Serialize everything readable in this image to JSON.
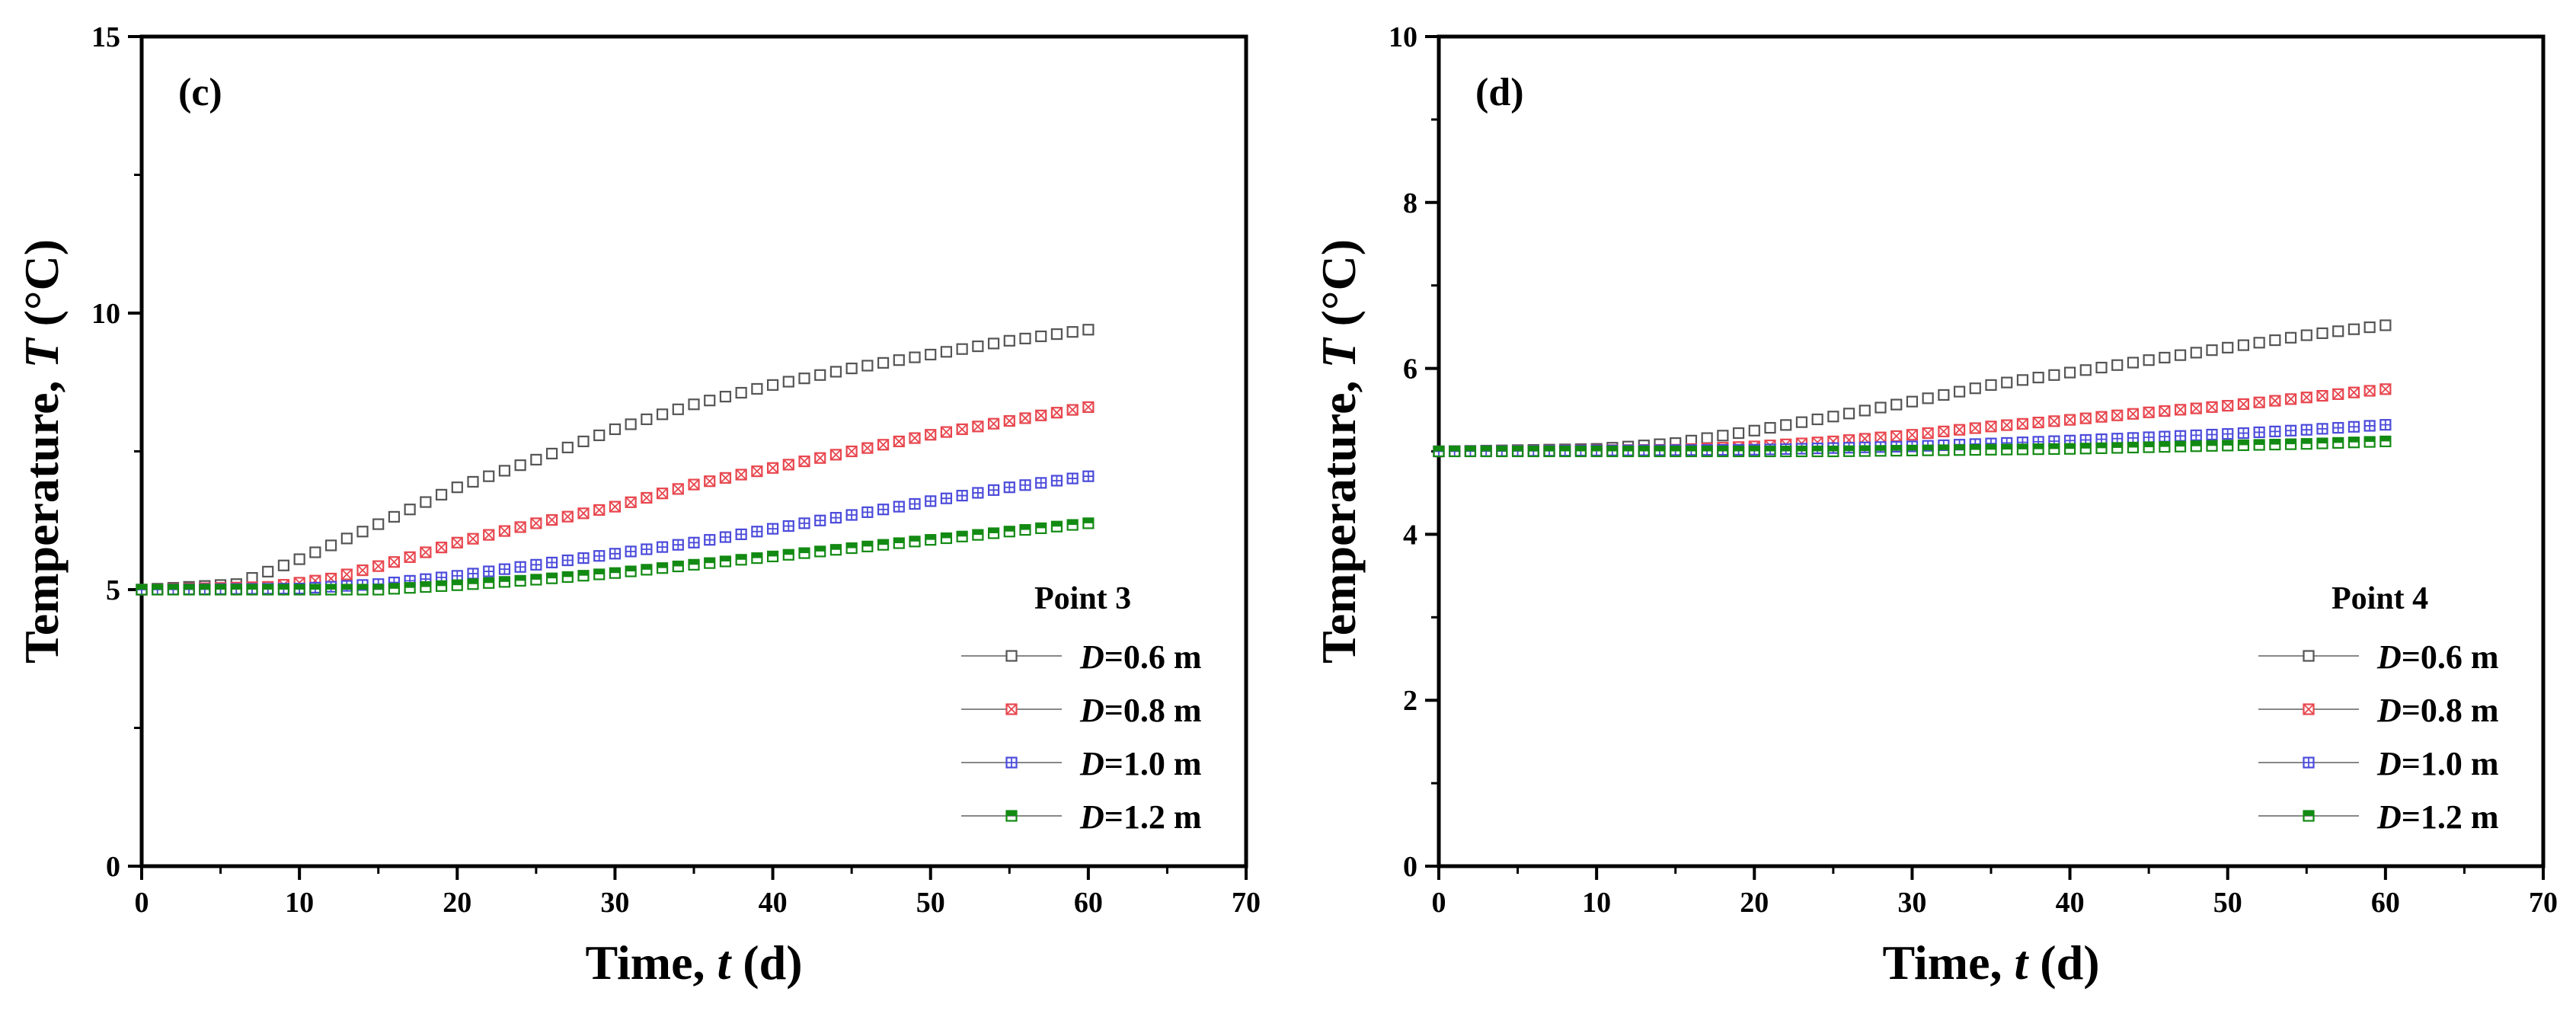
{
  "chart_data": [
    {
      "type": "scatter",
      "panel_label": "(c)",
      "xlabel": "Time, ",
      "xlabel_var": "t",
      "xlabel_unit": " (d)",
      "ylabel": "Temperature, ",
      "ylabel_var": "T",
      "ylabel_unit": " (°C)",
      "xlim": [
        0,
        70
      ],
      "ylim": [
        0,
        15
      ],
      "xticks": [
        0,
        10,
        20,
        30,
        40,
        50,
        60,
        70
      ],
      "yticks": [
        0,
        5,
        10,
        15
      ],
      "legend_title": "Point 3",
      "legend_position": "bottom-right",
      "series": [
        {
          "name": "D=0.6 m",
          "var": "D",
          "suffix": "=0.6 m",
          "color": "#555555",
          "marker": "open-square",
          "points": [
            [
              0,
              5.0
            ],
            [
              6,
              5.1
            ],
            [
              10,
              5.55
            ],
            [
              14,
              6.05
            ],
            [
              20,
              6.85
            ],
            [
              25,
              7.35
            ],
            [
              30,
              7.9
            ],
            [
              35,
              8.35
            ],
            [
              40,
              8.7
            ],
            [
              45,
              9.0
            ],
            [
              50,
              9.25
            ],
            [
              55,
              9.5
            ],
            [
              60,
              9.7
            ]
          ]
        },
        {
          "name": "D=0.8 m",
          "var": "D",
          "suffix": "=0.8 m",
          "color": "#e8474f",
          "marker": "crossed-square",
          "points": [
            [
              0,
              5.0
            ],
            [
              8,
              5.05
            ],
            [
              12,
              5.2
            ],
            [
              16,
              5.5
            ],
            [
              20,
              5.85
            ],
            [
              25,
              6.2
            ],
            [
              30,
              6.5
            ],
            [
              35,
              6.9
            ],
            [
              40,
              7.2
            ],
            [
              45,
              7.5
            ],
            [
              50,
              7.8
            ],
            [
              55,
              8.05
            ],
            [
              60,
              8.3
            ]
          ]
        },
        {
          "name": "D=1.0 m",
          "var": "D",
          "suffix": "=1.0 m",
          "color": "#4b4bdb",
          "marker": "plus-square",
          "points": [
            [
              0,
              5.0
            ],
            [
              10,
              5.02
            ],
            [
              15,
              5.1
            ],
            [
              20,
              5.25
            ],
            [
              25,
              5.45
            ],
            [
              30,
              5.65
            ],
            [
              35,
              5.85
            ],
            [
              40,
              6.1
            ],
            [
              45,
              6.35
            ],
            [
              50,
              6.6
            ],
            [
              55,
              6.85
            ],
            [
              60,
              7.05
            ]
          ]
        },
        {
          "name": "D=1.2 m",
          "var": "D",
          "suffix": "=1.2 m",
          "color": "#138a13",
          "marker": "half-square",
          "points": [
            [
              0,
              5.0
            ],
            [
              15,
              5.0
            ],
            [
              20,
              5.08
            ],
            [
              25,
              5.18
            ],
            [
              30,
              5.3
            ],
            [
              35,
              5.45
            ],
            [
              40,
              5.6
            ],
            [
              45,
              5.75
            ],
            [
              50,
              5.9
            ],
            [
              55,
              6.05
            ],
            [
              60,
              6.2
            ]
          ]
        }
      ]
    },
    {
      "type": "scatter",
      "panel_label": "(d)",
      "xlabel": "Time, ",
      "xlabel_var": "t",
      "xlabel_unit": " (d)",
      "ylabel": "Temperature, ",
      "ylabel_var": "T",
      "ylabel_unit": " (°C)",
      "xlim": [
        0,
        70
      ],
      "ylim": [
        0,
        10
      ],
      "xticks": [
        0,
        10,
        20,
        30,
        40,
        50,
        60,
        70
      ],
      "yticks": [
        0,
        2,
        4,
        6,
        8,
        10
      ],
      "legend_title": "Point 4",
      "legend_position": "bottom-right",
      "series": [
        {
          "name": "D=0.6 m",
          "var": "D",
          "suffix": "=0.6 m",
          "color": "#555555",
          "marker": "open-square",
          "points": [
            [
              0,
              5.0
            ],
            [
              10,
              5.03
            ],
            [
              15,
              5.1
            ],
            [
              20,
              5.25
            ],
            [
              25,
              5.42
            ],
            [
              30,
              5.6
            ],
            [
              35,
              5.8
            ],
            [
              40,
              5.95
            ],
            [
              45,
              6.1
            ],
            [
              50,
              6.25
            ],
            [
              55,
              6.4
            ],
            [
              60,
              6.52
            ]
          ]
        },
        {
          "name": "D=0.8 m",
          "var": "D",
          "suffix": "=0.8 m",
          "color": "#e8474f",
          "marker": "crossed-square",
          "points": [
            [
              0,
              5.0
            ],
            [
              15,
              5.02
            ],
            [
              20,
              5.06
            ],
            [
              25,
              5.12
            ],
            [
              30,
              5.2
            ],
            [
              35,
              5.3
            ],
            [
              40,
              5.38
            ],
            [
              45,
              5.47
            ],
            [
              50,
              5.55
            ],
            [
              55,
              5.65
            ],
            [
              60,
              5.75
            ]
          ]
        },
        {
          "name": "D=1.0 m",
          "var": "D",
          "suffix": "=1.0 m",
          "color": "#4b4bdb",
          "marker": "plus-square",
          "points": [
            [
              0,
              5.0
            ],
            [
              20,
              5.02
            ],
            [
              30,
              5.06
            ],
            [
              40,
              5.13
            ],
            [
              45,
              5.17
            ],
            [
              50,
              5.21
            ],
            [
              55,
              5.26
            ],
            [
              60,
              5.32
            ]
          ]
        },
        {
          "name": "D=1.2 m",
          "var": "D",
          "suffix": "=1.2 m",
          "color": "#138a13",
          "marker": "half-square",
          "points": [
            [
              0,
              5.0
            ],
            [
              25,
              5.0
            ],
            [
              30,
              5.01
            ],
            [
              40,
              5.03
            ],
            [
              45,
              5.05
            ],
            [
              50,
              5.07
            ],
            [
              55,
              5.09
            ],
            [
              60,
              5.12
            ]
          ]
        }
      ]
    }
  ]
}
